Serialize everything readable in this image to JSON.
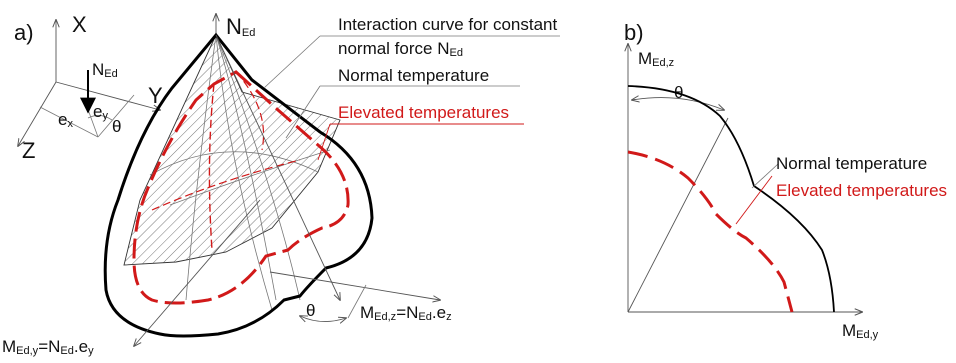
{
  "colors": {
    "line": "#000000",
    "elevated": "#d11919",
    "hatch": "#555555"
  },
  "panel_a": {
    "tag": "a)",
    "axes": {
      "x_label": "X",
      "y_label": "Y",
      "z_label": "Z",
      "force_label": "N",
      "force_sub": "Ed",
      "ex_label": "e",
      "ex_sub": "x",
      "ey_label": "e",
      "ey_sub": "y",
      "theta": "θ"
    },
    "ned_top": {
      "main": "N",
      "sub": "Ed"
    },
    "annotations": {
      "interaction_line1": "Interaction curve for constant",
      "interaction_line2_prefix": "normal force N",
      "interaction_line2_sub": "Ed",
      "normal_temperature": "Normal temperature",
      "elevated_temperatures": "Elevated temperatures"
    },
    "medz": {
      "m": "M",
      "m_sub": "Ed,z",
      "eq": "=N",
      "n_sub": "Ed",
      "tail": ".e",
      "tail_sub": "z"
    },
    "medy": {
      "m": "M",
      "m_sub": "Ed,y",
      "eq": "=N",
      "n_sub": "Ed",
      "tail": ".e",
      "tail_sub": "y"
    },
    "theta": "θ"
  },
  "panel_b": {
    "tag": "b)",
    "axis_z": {
      "m": "M",
      "sub": "Ed,z"
    },
    "axis_y": {
      "m": "M",
      "sub": "Ed,y"
    },
    "theta": "θ",
    "normal_temperature": "Normal temperature",
    "elevated_temperatures": "Elevated temperatures"
  }
}
